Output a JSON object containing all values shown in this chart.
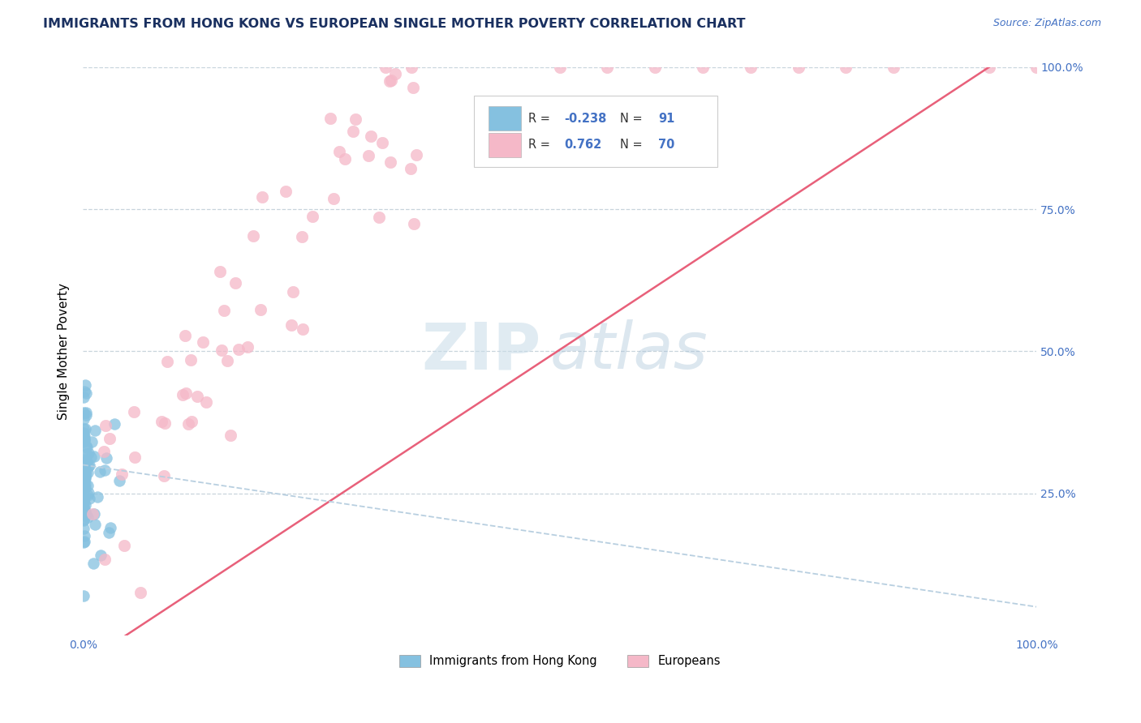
{
  "title": "IMMIGRANTS FROM HONG KONG VS EUROPEAN SINGLE MOTHER POVERTY CORRELATION CHART",
  "source_text": "Source: ZipAtlas.com",
  "ylabel": "Single Mother Poverty",
  "legend_label1": "Immigrants from Hong Kong",
  "legend_label2": "Europeans",
  "R1": -0.238,
  "N1": 91,
  "R2": 0.762,
  "N2": 70,
  "color_blue": "#85c1e0",
  "color_pink": "#f5b8c8",
  "color_line_pink": "#e8607a",
  "color_line_blue_dash": "#b8cfe0",
  "axis_color": "#4472c4",
  "title_color": "#1a3060",
  "background": "#ffffff",
  "grid_color": "#c8d4dc",
  "xlim": [
    0.0,
    1.0
  ],
  "ylim": [
    0.0,
    1.0
  ]
}
